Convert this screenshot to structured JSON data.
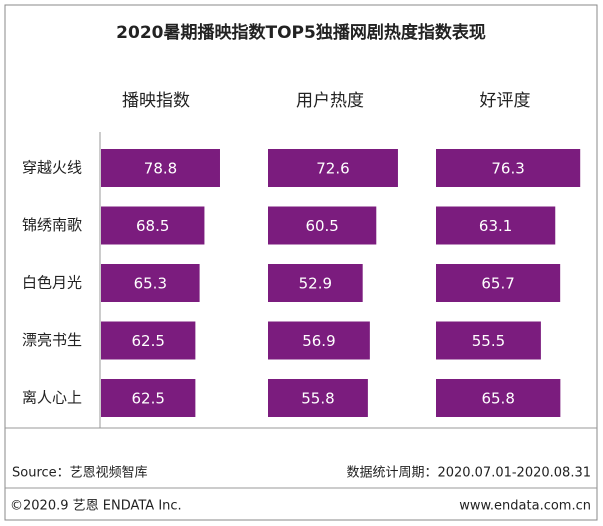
{
  "chart_data": {
    "type": "bar",
    "title": "2020暑期播映指数TOP5独播网剧热度指数表现",
    "categories": [
      "穿越火线",
      "锦绣南歌",
      "白色月光",
      "漂亮书生",
      "离人心上"
    ],
    "series": [
      {
        "name": "播映指数",
        "color": "#7b1c7e",
        "values": [
          78.8,
          68.5,
          65.3,
          62.5,
          62.5
        ]
      },
      {
        "name": "用户热度",
        "color": "#7b1c7e",
        "values": [
          72.6,
          60.5,
          52.9,
          56.9,
          55.8
        ]
      },
      {
        "name": "好评度",
        "color": "#7b1c7e",
        "values": [
          76.3,
          63.1,
          65.7,
          55.5,
          65.8
        ]
      }
    ],
    "source": "Source：艺恩视频智库",
    "period": "数据统计周期：2020.07.01-2020.08.31",
    "copyright": "©2020.9 艺恩 ENDATA Inc.",
    "website": "www.endata.com.cn"
  }
}
